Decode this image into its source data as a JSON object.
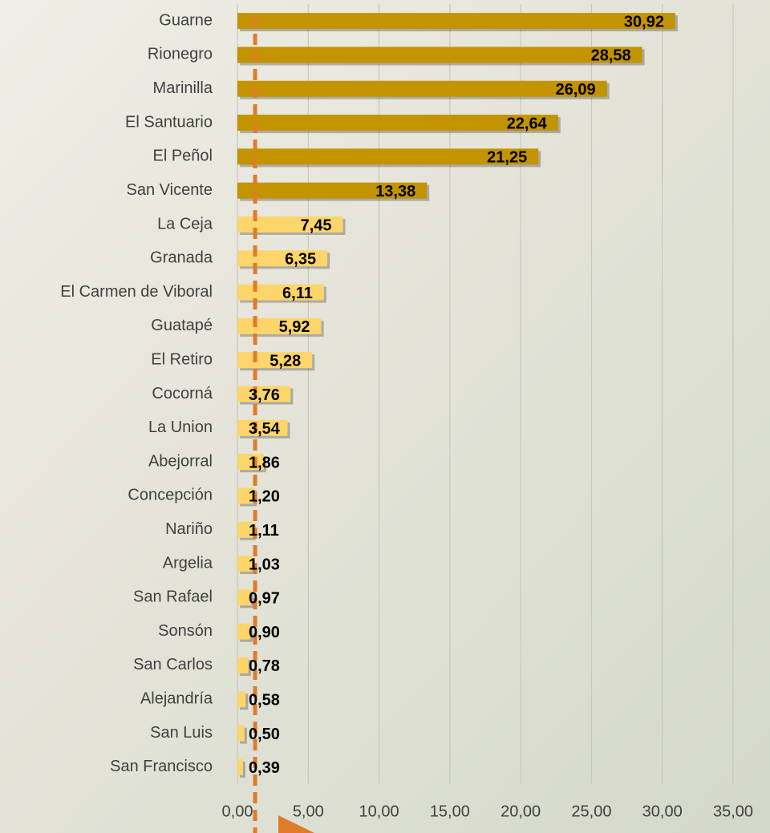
{
  "chart_data": {
    "type": "bar",
    "orientation": "horizontal",
    "categories": [
      "Guarne",
      "Rionegro",
      "Marinilla",
      "El Santuario",
      "El Peñol",
      "San Vicente",
      "La Ceja",
      "Granada",
      "El Carmen de Viboral",
      "Guatapé",
      "El Retiro",
      "Cocorná",
      "La Union",
      "Abejorral",
      "Concepción",
      "Nariño",
      "Argelia",
      "San Rafael",
      "Sonsón",
      "San Carlos",
      "Alejandría",
      "San Luis",
      "San Francisco"
    ],
    "values": [
      30.92,
      28.58,
      26.09,
      22.64,
      21.25,
      13.38,
      7.45,
      6.35,
      6.11,
      5.92,
      5.28,
      3.76,
      3.54,
      1.86,
      1.2,
      1.11,
      1.03,
      0.97,
      0.9,
      0.78,
      0.58,
      0.5,
      0.39
    ],
    "value_labels": [
      "30,92",
      "28,58",
      "26,09",
      "22,64",
      "21,25",
      "13,38",
      "7,45",
      "6,35",
      "6,11",
      "5,92",
      "5,28",
      "3,76",
      "3,54",
      "1,86",
      "1,20",
      "1,11",
      "1,03",
      "0,97",
      "0,90",
      "0,78",
      "0,58",
      "0,50",
      "0,39"
    ],
    "colors": [
      "#c39300",
      "#c39300",
      "#c39300",
      "#c39300",
      "#c39300",
      "#c39300",
      "#fdd56b",
      "#fdd56b",
      "#fdd56b",
      "#fdd56b",
      "#fdd56b",
      "#fdd56b",
      "#fdd56b",
      "#fdd56b",
      "#fdd56b",
      "#fdd56b",
      "#fdd56b",
      "#fdd56b",
      "#fdd56b",
      "#fdd56b",
      "#fdd56b",
      "#fdd56b",
      "#fdd56b"
    ],
    "xlim": [
      0,
      35
    ],
    "xticks": [
      {
        "value": 0,
        "label": "0,00"
      },
      {
        "value": 5,
        "label": "5,00"
      },
      {
        "value": 10,
        "label": "10,00"
      },
      {
        "value": 15,
        "label": "15,00"
      },
      {
        "value": 20,
        "label": "20,00"
      },
      {
        "value": 25,
        "label": "25,00"
      },
      {
        "value": 30,
        "label": "30,00"
      },
      {
        "value": 35,
        "label": "35,00"
      }
    ],
    "grid": true,
    "reference_line": {
      "value": 1.25,
      "color": "#e07b2a"
    }
  }
}
